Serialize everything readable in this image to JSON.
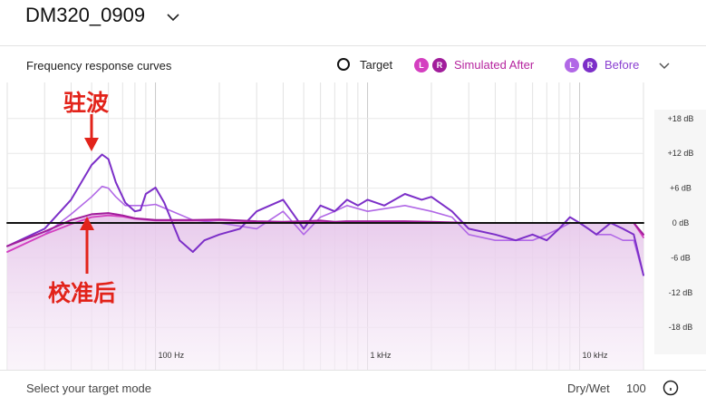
{
  "header": {
    "title": "DM320_0909",
    "chevron_icon": "chevron-down-icon"
  },
  "section": {
    "title": "Frequency response curves"
  },
  "legend": {
    "target_label": "Target",
    "after_label": "Simulated After",
    "before_label": "Before",
    "badge_left": "L",
    "badge_right": "R",
    "chevron_icon": "chevron-down-icon"
  },
  "colors": {
    "after": "#d43fc0",
    "after_right": "#a11d9b",
    "before": "#b168e6",
    "before_right": "#7c2fc8",
    "target": "#111111",
    "fill": "#ecd3ee"
  },
  "annotations": {
    "resonance": "驻波",
    "calibrated": "校准后"
  },
  "chart_data": {
    "type": "line",
    "x_scale": "log",
    "xlim": [
      20,
      20000
    ],
    "ylim": [
      -20,
      20
    ],
    "grid": true,
    "x_tick_labels": [
      {
        "hz": 100,
        "label": "100 Hz"
      },
      {
        "hz": 1000,
        "label": "1 kHz"
      },
      {
        "hz": 10000,
        "label": "10 kHz"
      }
    ],
    "y_tick_labels": [
      {
        "db": 18,
        "label": "+18 dB"
      },
      {
        "db": 12,
        "label": "+12 dB"
      },
      {
        "db": 6,
        "label": "+6 dB"
      },
      {
        "db": 0,
        "label": "0 dB"
      },
      {
        "db": -6,
        "label": "-6 dB"
      },
      {
        "db": -12,
        "label": "-12 dB"
      },
      {
        "db": -18,
        "label": "-18 dB"
      }
    ],
    "series": [
      {
        "name": "Target",
        "role": "target",
        "x": [
          20,
          20000
        ],
        "y": [
          0,
          0
        ]
      },
      {
        "name": "Before",
        "channel": "R",
        "role": "before-right",
        "x": [
          20,
          30,
          40,
          50,
          56,
          60,
          65,
          72,
          80,
          85,
          90,
          100,
          110,
          130,
          150,
          170,
          200,
          250,
          300,
          400,
          500,
          600,
          700,
          800,
          900,
          1000,
          1200,
          1500,
          1800,
          2000,
          2500,
          3000,
          4000,
          5000,
          6000,
          7000,
          8000,
          9000,
          10000,
          11000,
          12000,
          14000,
          16000,
          18000,
          20000
        ],
        "y": [
          -4,
          -1,
          4,
          10,
          11.8,
          11,
          7,
          3.5,
          2,
          2.2,
          5,
          6.1,
          3.5,
          -3,
          -5,
          -3,
          -2,
          -1,
          2,
          4,
          -1,
          3,
          2,
          4,
          3,
          4,
          3,
          5,
          4,
          4.5,
          2,
          -1,
          -2,
          -3,
          -2,
          -3,
          -1,
          1,
          0,
          -1,
          -2,
          0,
          -1,
          -2,
          -9
        ]
      },
      {
        "name": "Before",
        "channel": "L",
        "role": "before-left",
        "x": [
          20,
          30,
          40,
          50,
          56,
          60,
          65,
          72,
          80,
          90,
          100,
          120,
          150,
          200,
          300,
          400,
          500,
          600,
          700,
          800,
          1000,
          1500,
          2000,
          2500,
          3000,
          4000,
          5000,
          6000,
          7000,
          8000,
          9000,
          10000,
          12000,
          14000,
          16000,
          18000,
          20000
        ],
        "y": [
          -5,
          -2,
          1.5,
          4.5,
          6.3,
          6,
          4.5,
          3,
          3,
          3,
          3.2,
          2,
          0.5,
          0,
          -1,
          2,
          -2,
          1,
          2,
          3,
          2,
          3,
          2,
          1,
          -2,
          -3,
          -3,
          -3,
          -2,
          -1,
          0,
          0,
          -2,
          -2,
          -3,
          -3,
          -9
        ]
      },
      {
        "name": "Simulated After",
        "channel": "R",
        "role": "after-right",
        "x": [
          20,
          30,
          40,
          50,
          60,
          70,
          80,
          100,
          150,
          200,
          300,
          400,
          500,
          600,
          700,
          800,
          1000,
          1500,
          2000,
          2500,
          3000,
          4000,
          5000,
          6000,
          7000,
          8000,
          9000,
          10000,
          12000,
          14000,
          16000,
          18000,
          20000
        ],
        "y": [
          -4,
          -1.5,
          0.5,
          1.5,
          1.7,
          1.3,
          0.8,
          0.5,
          0.5,
          0.6,
          0.3,
          0.2,
          0.3,
          0.4,
          0.2,
          0.3,
          0.3,
          0.3,
          0.2,
          0.1,
          0,
          0,
          0,
          0,
          0,
          0,
          0,
          0,
          0,
          0,
          0,
          0,
          -2
        ]
      },
      {
        "name": "Simulated After",
        "channel": "L",
        "role": "after-left",
        "x": [
          20,
          30,
          40,
          50,
          60,
          70,
          80,
          100,
          150,
          200,
          300,
          400,
          500,
          600,
          700,
          800,
          1000,
          1500,
          2000,
          2500,
          3000,
          4000,
          5000,
          6000,
          7000,
          8000,
          9000,
          10000,
          12000,
          14000,
          16000,
          18000,
          20000
        ],
        "y": [
          -5,
          -2,
          -0.2,
          1,
          1.3,
          1.1,
          0.7,
          0.4,
          0.4,
          0.5,
          0.2,
          0.1,
          0.2,
          0.3,
          0.1,
          0.2,
          0.2,
          0.2,
          0.1,
          0,
          0,
          0,
          0,
          0,
          0,
          0,
          0,
          0,
          0,
          0,
          0,
          0,
          -2.5
        ]
      }
    ]
  },
  "footer": {
    "mode_label": "Select your target mode",
    "drywet_label": "Dry/Wet",
    "drywet_value": "100",
    "knob_icon": "dial-icon"
  }
}
